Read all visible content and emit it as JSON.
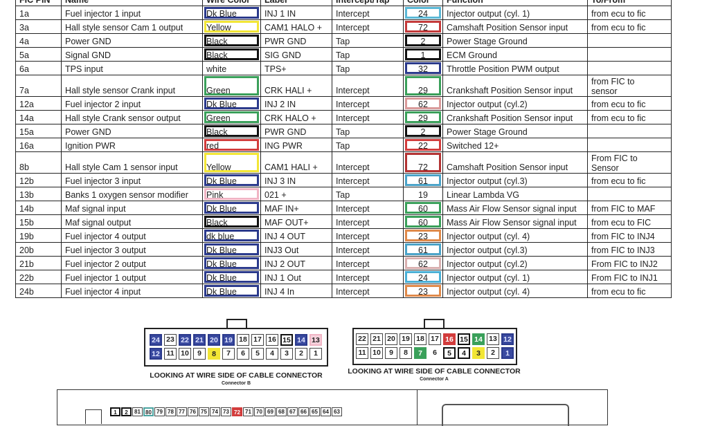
{
  "table": {
    "headers": [
      "FIC PIN",
      "Name",
      "Wire Color",
      "Label",
      "Intercept/Tap",
      "Color",
      "Function",
      "To/From"
    ],
    "rows": [
      {
        "pin": "1a",
        "name": "Fuel injector 1 input",
        "wire": "Dk Blue",
        "wire_hex": "#2b3a8c",
        "label": "INJ 1 IN",
        "mode": "Intercept",
        "color": "24",
        "color_hex": "#5bb8d6",
        "function": "Injector output (cyl. 1)",
        "tofrom": "from ecu to fic"
      },
      {
        "pin": "3a",
        "name": "Hall style sensor Cam 1 output",
        "wire": "Yellow",
        "wire_hex": "#f2e635",
        "label": "CAM1 HALO +",
        "mode": "Intercept",
        "color": "72",
        "color_hex": "#c43a3a",
        "function": "Camshaft Position Sensor input",
        "tofrom": "from ecu to fic"
      },
      {
        "pin": "4a",
        "name": "Power GND",
        "wire": "Black",
        "wire_hex": "#111111",
        "label": "PWR GND",
        "mode": "Tap",
        "color": "2",
        "color_hex": "#111111",
        "function": "Power Stage Ground",
        "tofrom": ""
      },
      {
        "pin": "5a",
        "name": "Signal GND",
        "wire": "Black",
        "wire_hex": "#111111",
        "label": "SIG GND",
        "mode": "Tap",
        "color": "1",
        "color_hex": "#111111",
        "function": "ECM Ground",
        "tofrom": ""
      },
      {
        "pin": "6a",
        "name": "TPS input",
        "wire": "white",
        "wire_hex": "#ffffff",
        "label": "TPS+",
        "mode": "Tap",
        "color": "32",
        "color_hex": "#2b3a8c",
        "function": "Throttle Position PWM output",
        "tofrom": ""
      },
      {
        "pin": "7a",
        "name": "Hall style sensor Crank input",
        "wire": "Green",
        "wire_hex": "#3aa05a",
        "label": "CRK HALI +",
        "mode": "Intercept",
        "color": "29",
        "color_hex": "#3aa05a",
        "function": "Crankshaft Position Sensor input",
        "tofrom": "from FIC to sensor",
        "tall": true
      },
      {
        "pin": "12a",
        "name": "Fuel injector 2 input",
        "wire": "Dk Blue",
        "wire_hex": "#2b3a8c",
        "label": "INJ 2 IN",
        "mode": "Intercept",
        "color": "62",
        "color_hex": "#d99a9a",
        "function": "Injector output (cyl.2)",
        "tofrom": "from ecu to fic"
      },
      {
        "pin": "14a",
        "name": "Hall style Crank sensor output",
        "wire": "Green",
        "wire_hex": "#3aa05a",
        "label": "CRK HALO +",
        "mode": "Intercept",
        "color": "29",
        "color_hex": "#3aa05a",
        "function": "Crankshaft Position Sensor input",
        "tofrom": "from ecu to fic"
      },
      {
        "pin": "15a",
        "name": "Power GND",
        "wire": "Black",
        "wire_hex": "#111111",
        "label": "PWR GND",
        "mode": "Tap",
        "color": "2",
        "color_hex": "#111111",
        "function": "Power Stage Ground",
        "tofrom": ""
      },
      {
        "pin": "16a",
        "name": "Ignition PWR",
        "wire": "red",
        "wire_hex": "#d23c3c",
        "label": "ING PWR",
        "mode": "Tap",
        "color": "22",
        "color_hex": "#d23c3c",
        "function": "Switched 12+",
        "tofrom": ""
      },
      {
        "pin": "8b",
        "name": "Hall style Cam 1 sensor input",
        "wire": "Yellow",
        "wire_hex": "#f2e635",
        "label": "CAM1 HALI +",
        "mode": "Intercept",
        "color": "72",
        "color_hex": "#b33333",
        "function": "Camshaft Position Sensor input",
        "tofrom": "From FIC to Sensor",
        "tall": true
      },
      {
        "pin": "12b",
        "name": "Fuel injector 3 input",
        "wire": "Dk Blue",
        "wire_hex": "#2b3a8c",
        "label": "INJ 3 IN",
        "mode": "Intercept",
        "color": "61",
        "color_hex": "#4aa3c8",
        "function": "Injector output (cyl.3)",
        "tofrom": "from ecu to fic"
      },
      {
        "pin": "13b",
        "name": "Banks 1 oxygen sensor modifier",
        "wire": "Pink",
        "wire_hex": "#f0b4c4",
        "label": "021 +",
        "mode": "Tap",
        "color": "19",
        "color_hex": "#ffffff",
        "function": "Linear Lambda VG",
        "tofrom": ""
      },
      {
        "pin": "14b",
        "name": "Maf signal input",
        "wire": "Dk Blue",
        "wire_hex": "#2b3a8c",
        "label": "MAF IN+",
        "mode": "Intercept",
        "color": "60",
        "color_hex": "#3aa05a",
        "function": "Mass Air Flow Sensor signal input",
        "tofrom": "from FIC to MAF"
      },
      {
        "pin": "15b",
        "name": "Maf signal output",
        "wire": "Black",
        "wire_hex": "#111111",
        "label": "MAF OUT+",
        "mode": "Intercept",
        "color": "60",
        "color_hex": "#3aa05a",
        "function": "Mass Air Flow Sensor signal input",
        "tofrom": "from ecu to FIC"
      },
      {
        "pin": "19b",
        "name": "Fuel injector 4 output",
        "wire": "dk blue",
        "wire_hex": "#2b3a8c",
        "label": "INJ 4 OUT",
        "mode": "Intercept",
        "color": "23",
        "color_hex": "#e08a4a",
        "function": "Injector output (cyl. 4)",
        "tofrom": "from FIC to INJ4"
      },
      {
        "pin": "20b",
        "name": "Fuel injector 3 output",
        "wire": "Dk Blue",
        "wire_hex": "#2b3a8c",
        "label": "INJ3 Out",
        "mode": "Intercept",
        "color": "61",
        "color_hex": "#4aa3c8",
        "function": "Injector output (cyl.3)",
        "tofrom": "from FIC to INJ3"
      },
      {
        "pin": "21b",
        "name": "Fuel injector 2 output",
        "wire": "Dk Blue",
        "wire_hex": "#2b3a8c",
        "label": "INJ 2 OUT",
        "mode": "Intercept",
        "color": "62",
        "color_hex": "#d9b0b0",
        "function": "Injector output (cyl.2)",
        "tofrom": "From FIC to INJ2"
      },
      {
        "pin": "22b",
        "name": "Fuel injector 1 output",
        "wire": "Dk Blue",
        "wire_hex": "#2b3a8c",
        "label": "INJ 1 Out",
        "mode": "Intercept",
        "color": "24",
        "color_hex": "#4ab0d6",
        "function": "Injector output (cyl. 1)",
        "tofrom": "From FIC to INJ1"
      },
      {
        "pin": "24b",
        "name": "Fuel injector 4 input",
        "wire": "Dk Blue",
        "wire_hex": "#2b3a8c",
        "label": "INJ 4 In",
        "mode": "Intercept",
        "color": "23",
        "color_hex": "#e08a4a",
        "function": "Injector output (cyl. 4)",
        "tofrom": "from ecu to fic"
      }
    ]
  },
  "connector_b": {
    "caption": "LOOKING AT WIRE SIDE OF CABLE CONNECTOR",
    "subcaption": "Connector B",
    "top": [
      {
        "n": "24",
        "c": "#2b3a8c"
      },
      {
        "n": "23",
        "c": ""
      },
      {
        "n": "22",
        "c": "#2b3a8c"
      },
      {
        "n": "21",
        "c": "#2b3a8c"
      },
      {
        "n": "20",
        "c": "#2b3a8c"
      },
      {
        "n": "19",
        "c": "#2b3a8c"
      },
      {
        "n": "18",
        "c": ""
      },
      {
        "n": "17",
        "c": ""
      },
      {
        "n": "16",
        "c": ""
      },
      {
        "n": "15",
        "c": "#111111"
      },
      {
        "n": "14",
        "c": "#2b3a8c"
      },
      {
        "n": "13",
        "c": "#f0b4c4"
      }
    ],
    "bottom": [
      {
        "n": "12",
        "c": "#2b3a8c"
      },
      {
        "n": "11",
        "c": ""
      },
      {
        "n": "10",
        "c": ""
      },
      {
        "n": "9",
        "c": ""
      },
      {
        "n": "8",
        "c": "#f2e635"
      },
      {
        "n": "7",
        "c": ""
      },
      {
        "n": "6",
        "c": ""
      },
      {
        "n": "5",
        "c": ""
      },
      {
        "n": "4",
        "c": ""
      },
      {
        "n": "3",
        "c": ""
      },
      {
        "n": "2",
        "c": ""
      },
      {
        "n": "1",
        "c": ""
      }
    ]
  },
  "connector_a": {
    "caption": "LOOKING AT WIRE SIDE OF CABLE CONNECTOR",
    "subcaption": "Connector A",
    "top": [
      {
        "n": "22",
        "c": ""
      },
      {
        "n": "21",
        "c": ""
      },
      {
        "n": "20",
        "c": ""
      },
      {
        "n": "19",
        "c": ""
      },
      {
        "n": "18",
        "c": ""
      },
      {
        "n": "17",
        "c": ""
      },
      {
        "n": "16",
        "c": "#d23c3c"
      },
      {
        "n": "15",
        "c": "#111111"
      },
      {
        "n": "14",
        "c": "#3aa05a"
      },
      {
        "n": "13",
        "c": ""
      },
      {
        "n": "12",
        "c": "#2b3a8c"
      }
    ],
    "bottom": [
      {
        "n": "11",
        "c": ""
      },
      {
        "n": "10",
        "c": ""
      },
      {
        "n": "9",
        "c": ""
      },
      {
        "n": "8",
        "c": ""
      },
      {
        "n": "7",
        "c": "#3aa05a"
      },
      {
        "n": "6",
        "c": "none"
      },
      {
        "n": "5",
        "c": "#111111"
      },
      {
        "n": "4",
        "c": "#111111"
      },
      {
        "n": "3",
        "c": "#f2e635"
      },
      {
        "n": "2",
        "c": ""
      },
      {
        "n": "1",
        "c": "#2b3a8c"
      }
    ]
  },
  "ecu_connector": {
    "pins": [
      {
        "n": "1",
        "c": "#111111"
      },
      {
        "n": "2",
        "c": "#111111"
      },
      {
        "n": "81",
        "c": ""
      },
      {
        "n": "80",
        "c": "#4aa3a0"
      },
      {
        "n": "79",
        "c": ""
      },
      {
        "n": "78",
        "c": ""
      },
      {
        "n": "77",
        "c": ""
      },
      {
        "n": "76",
        "c": ""
      },
      {
        "n": "75",
        "c": ""
      },
      {
        "n": "74",
        "c": ""
      },
      {
        "n": "73",
        "c": ""
      },
      {
        "n": "72",
        "c": "#d23c3c"
      },
      {
        "n": "71",
        "c": ""
      },
      {
        "n": "70",
        "c": ""
      },
      {
        "n": "69",
        "c": ""
      },
      {
        "n": "68",
        "c": ""
      },
      {
        "n": "67",
        "c": ""
      },
      {
        "n": "66",
        "c": ""
      },
      {
        "n": "65",
        "c": ""
      },
      {
        "n": "64",
        "c": ""
      },
      {
        "n": "63",
        "c": ""
      }
    ]
  }
}
